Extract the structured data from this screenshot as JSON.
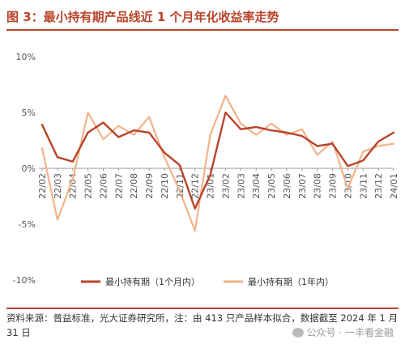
{
  "figure": {
    "title": "图 3：最小持有期产品线近 1 个月年化收益率走势",
    "source_note": "资料来源：普益标准，光大证券研究所，注：由 413 只产品样本拟合，数据截至 2024 年 1 月 31 日",
    "watermark": "公众号 · 一丰看金融"
  },
  "chart_data": {
    "type": "line",
    "x": [
      "22/02",
      "22/03",
      "22/04",
      "22/05",
      "22/06",
      "22/07",
      "22/08",
      "22/09",
      "22/10",
      "22/11",
      "22/12",
      "23/01",
      "23/02",
      "23/03",
      "23/04",
      "23/05",
      "23/06",
      "23/07",
      "23/08",
      "23/09",
      "23/10",
      "23/11",
      "23/12",
      "24/01"
    ],
    "x_tick_labels": [
      "22/02",
      "22/03",
      "22/04",
      "22/05",
      "22/06",
      "22/07",
      "22/08",
      "22/09",
      "22/10",
      "22/11",
      "22/12",
      "23/01",
      "23/02",
      "23/03",
      "23/04",
      "23/05",
      "23/06",
      "23/07",
      "23/08",
      "23/09",
      "23/10",
      "23/11",
      "23/12",
      "24/01"
    ],
    "y_tick_labels": [
      "10%",
      "5%",
      "0%",
      "-5%",
      "-10%"
    ],
    "ylim": [
      -10,
      10
    ],
    "xlabel": "",
    "ylabel": "",
    "grid": false,
    "legend_position": "bottom",
    "series": [
      {
        "name": "最小持有期（1个月内）",
        "color": "#b8442a",
        "values": [
          3.9,
          1.0,
          0.6,
          3.2,
          4.1,
          2.8,
          3.4,
          3.2,
          1.4,
          0.3,
          -3.6,
          -0.6,
          5.0,
          3.5,
          3.7,
          3.4,
          3.2,
          2.9,
          2.0,
          2.2,
          0.2,
          0.7,
          2.4,
          3.2
        ]
      },
      {
        "name": "最小持有期（1年内）",
        "color": "#f2b38a",
        "values": [
          1.8,
          -4.6,
          -1.0,
          5.0,
          2.6,
          3.8,
          3.0,
          4.6,
          1.0,
          -2.0,
          -5.6,
          3.0,
          6.5,
          4.0,
          3.0,
          4.0,
          3.0,
          3.5,
          1.2,
          2.4,
          -1.8,
          1.5,
          2.0,
          2.2
        ]
      }
    ]
  }
}
